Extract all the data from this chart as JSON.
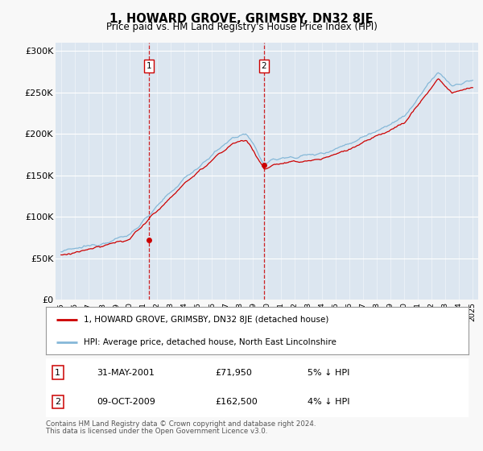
{
  "title": "1, HOWARD GROVE, GRIMSBY, DN32 8JE",
  "subtitle": "Price paid vs. HM Land Registry's House Price Index (HPI)",
  "plot_bg_color": "#dce6f0",
  "fig_bg_color": "#f8f8f8",
  "ylim": [
    0,
    310000
  ],
  "yticks": [
    0,
    50000,
    100000,
    150000,
    200000,
    250000,
    300000
  ],
  "ytick_labels": [
    "£0",
    "£50K",
    "£100K",
    "£150K",
    "£200K",
    "£250K",
    "£300K"
  ],
  "sale1_year": 2001.42,
  "sale1_price": 71950,
  "sale2_year": 2009.78,
  "sale2_price": 162500,
  "legend_entry1": "1, HOWARD GROVE, GRIMSBY, DN32 8JE (detached house)",
  "legend_entry2": "HPI: Average price, detached house, North East Lincolnshire",
  "row1_date": "31-MAY-2001",
  "row1_price": "£71,950",
  "row1_note": "5% ↓ HPI",
  "row2_date": "09-OCT-2009",
  "row2_price": "£162,500",
  "row2_note": "4% ↓ HPI",
  "footer_line1": "Contains HM Land Registry data © Crown copyright and database right 2024.",
  "footer_line2": "This data is licensed under the Open Government Licence v3.0.",
  "hpi_color": "#85b8d8",
  "price_color": "#cc0000"
}
